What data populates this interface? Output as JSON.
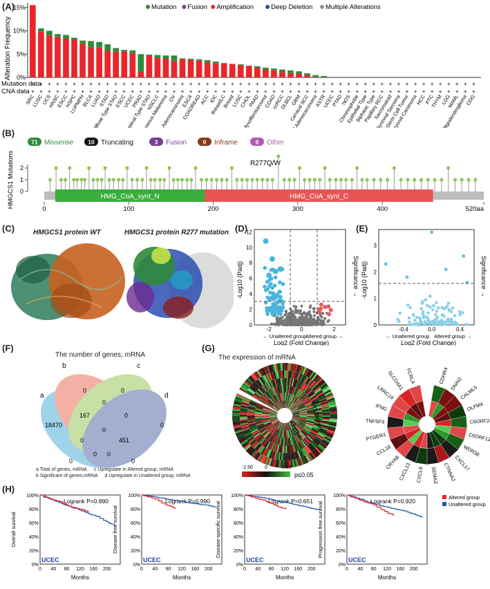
{
  "panels": {
    "a": "(A)",
    "b": "(B)",
    "c": "(C)",
    "d": "(D)",
    "e": "(E)",
    "f": "(F)",
    "g": "(G)",
    "h": "(H)"
  },
  "chart_data": [
    {
      "id": "alteration-frequency",
      "type": "bar",
      "ylabel": "Alteration Frequency",
      "yticks": [
        "15%",
        "10%",
        "5%",
        "0%"
      ],
      "ylim": [
        0,
        16
      ],
      "legend": [
        {
          "name": "Mutation",
          "color": "#2e8b3a"
        },
        {
          "name": "Fusion",
          "color": "#7a3d91"
        },
        {
          "name": "Amplification",
          "color": "#e8262b"
        },
        {
          "name": "Deep Deletion",
          "color": "#2257a8"
        },
        {
          "name": "Multiple Alterations",
          "color": "#8f8f8f"
        }
      ],
      "row_labels": [
        "Mutation data",
        "CNA data"
      ],
      "categories": [
        "SRC",
        "LUSC",
        "UCS",
        "HNSC",
        "ESCC",
        "HSPC",
        "LUPMPH",
        "BLCA",
        "LUAD",
        "STAD",
        "Diffuse Type STAD",
        "ESCC",
        "UCEC",
        "PRAD",
        "Intestinal Type STAD",
        "NSCLC",
        "Cutaneous Melanoma",
        "OV",
        "Mucinous Adenocarcinoma",
        "ESCA",
        "COADREAD",
        "ACC",
        "IDC",
        "BreastILC",
        "Breast",
        "LUSC",
        "CHOL",
        "PAAD",
        "Myxofibrosarcoma",
        "COAD",
        "ccRCC",
        "DLBCL",
        "GBM",
        "Cervical SCC",
        "Endocervical Adenocarcinoma",
        "ASTR",
        "UCEC",
        "PTAD",
        "NOS",
        "Chromophobe",
        "Epithelial Type",
        "Biphasic Type",
        "Papillary RCC",
        "Sarcomatoid",
        "Synovial Sarcoma",
        "Germ Cell Tumor",
        "Embryonal Carcinoma",
        "HCC",
        "PTC",
        "THYM",
        "LGG",
        "MAML",
        "Oligodendroglioma",
        "ODG"
      ],
      "series": [
        {
          "name": "Amplification",
          "values": [
            15.5,
            9.8,
            9.0,
            8.7,
            8.3,
            8.0,
            7.2,
            6.5,
            6.4,
            5.7,
            5.5,
            5.6,
            5.2,
            1.2,
            4.6,
            4.2,
            4.0,
            3.5,
            3.9,
            3.8,
            3.6,
            3.2,
            3.0,
            3.0,
            2.9,
            2.6,
            2.5,
            2.0,
            1.7,
            1.6,
            1.1,
            0.9,
            0.8,
            0.5,
            0.1,
            0,
            0,
            0,
            0,
            0,
            0,
            0,
            0,
            0,
            0,
            0,
            0,
            0,
            0,
            0,
            0,
            0,
            0,
            0
          ]
        },
        {
          "name": "Mutation",
          "values": [
            0,
            0.7,
            1.0,
            0.6,
            0.8,
            0.5,
            0.7,
            1.3,
            1.2,
            1.4,
            0.8,
            0.3,
            0.6,
            3.8,
            0.3,
            0.6,
            0.7,
            1.2,
            0.2,
            0.2,
            0.3,
            0.5,
            0.4,
            0.1,
            0,
            0.2,
            0,
            0.4,
            0.4,
            0.3,
            0.6,
            0.6,
            0.5,
            0.4,
            0.4,
            0.3,
            0,
            0,
            0,
            0,
            0,
            0,
            0,
            0,
            0,
            0,
            0,
            0,
            0,
            0,
            0,
            0,
            0,
            0
          ]
        }
      ]
    },
    {
      "id": "lollipop",
      "type": "scatter",
      "ylabel": "HMGCS1 Mutations",
      "yticks": [
        "2",
        "1",
        "0"
      ],
      "xlim": [
        0,
        520
      ],
      "xticks": [
        "0",
        "100",
        "200",
        "300",
        "400",
        "520aa"
      ],
      "annotation": "R277Q/W",
      "legend": [
        {
          "count": "71",
          "label": "Missense",
          "color": "#2e8b3a"
        },
        {
          "count": "10",
          "label": "Truncating",
          "color": "#111111"
        },
        {
          "count": "3",
          "label": "Fusion",
          "color": "#7a3d91"
        },
        {
          "count": "0",
          "label": "Inframe",
          "color": "#8b3a1a"
        },
        {
          "count": "0",
          "label": "Other",
          "color": "#b05ab0"
        }
      ],
      "domains": [
        {
          "name": "HMG_CoA_synt_N",
          "start": 13,
          "end": 190,
          "color": "#3aae3a"
        },
        {
          "name": "HMG_CoA_synt_C",
          "start": 190,
          "end": 460,
          "color": "#e85555"
        }
      ],
      "positions": [
        7,
        14,
        20,
        25,
        30,
        35,
        39,
        44,
        48,
        53,
        58,
        63,
        68,
        72,
        77,
        82,
        88,
        93,
        98,
        104,
        110,
        116,
        121,
        126,
        131,
        137,
        142,
        148,
        153,
        158,
        163,
        169,
        174,
        179,
        186,
        192,
        198,
        204,
        210,
        216,
        222,
        228,
        234,
        240,
        246,
        252,
        258,
        264,
        270,
        277,
        284,
        290,
        296,
        302,
        308,
        314,
        320,
        326,
        332,
        338,
        345,
        351,
        357,
        364,
        370,
        376,
        382,
        390,
        398,
        406,
        414,
        422,
        430,
        438,
        446,
        454,
        462,
        470,
        478,
        486,
        494,
        502,
        510
      ],
      "heights": [
        1,
        2,
        1,
        1,
        2,
        1,
        1,
        1,
        1,
        2,
        1,
        1,
        1,
        2,
        1,
        1,
        1,
        1,
        2,
        1,
        1,
        1,
        2,
        1,
        1,
        1,
        1,
        2,
        1,
        1,
        1,
        1,
        1,
        2,
        1,
        1,
        1,
        1,
        1,
        1,
        2,
        1,
        1,
        1,
        1,
        1,
        1,
        1,
        1,
        3,
        1,
        1,
        1,
        2,
        1,
        1,
        1,
        1,
        2,
        1,
        1,
        1,
        1,
        1,
        2,
        1,
        1,
        1,
        1,
        1,
        2,
        1,
        1,
        1,
        1,
        1,
        1,
        1,
        2,
        1,
        1,
        1,
        1
      ]
    },
    {
      "id": "volcano-mrna",
      "type": "scatter",
      "ylabel": "-Log10 (Padj)",
      "xlabel": "Log2 (Fold Change)",
      "yticks": [
        "12",
        "10",
        "8",
        "6",
        "4",
        "2",
        "0"
      ],
      "xticks": [
        "-2",
        "0",
        "2"
      ],
      "left_note": "← Unaltered group",
      "right_note": "Altered group →",
      "side_note": "Significance →"
    },
    {
      "id": "volcano-mirna",
      "type": "scatter",
      "ylabel": "-Log10 (Padj)",
      "xlabel": "Log2 (Fold Change)",
      "yticks": [
        "3",
        "2",
        "1",
        "0"
      ],
      "xticks": [
        "-0.4",
        "0.0",
        "0.4"
      ],
      "left_note": "← Unaltered group",
      "right_note": "Altered group →",
      "side_note": "Significance →"
    },
    {
      "id": "km-curves",
      "type": "line",
      "cancer": "UCEC",
      "xlabel": "Months",
      "xticks": [
        "0",
        "40",
        "80",
        "120",
        "160",
        "200"
      ],
      "yticks": [
        "100%",
        "80%",
        "60%",
        "40%",
        "20%",
        "0%"
      ],
      "legend": [
        {
          "name": "Altered group",
          "color": "#e8262b"
        },
        {
          "name": "Unaltered group",
          "color": "#2257a8"
        }
      ],
      "plots": [
        {
          "ylabel": "Overall survival",
          "logrank": "Logrank P=0.890"
        },
        {
          "ylabel": "Disease free survival",
          "logrank": "Logrank P=0.990"
        },
        {
          "ylabel": "Disease-specific survival",
          "logrank": "Logrank P=0.651"
        },
        {
          "ylabel": "Progression free survival",
          "logrank": "Logrank P=0.920"
        }
      ]
    }
  ],
  "protein": {
    "wt": "HMGCS1 protein WT",
    "mut": "HMGCS1 protein R277 mutation"
  },
  "venn": {
    "title": "The number of genes, mRNA",
    "sets": [
      "a",
      "b",
      "c",
      "d"
    ],
    "numbers": [
      "0",
      "0",
      "0",
      "18470",
      "167",
      "0",
      "0",
      "0",
      "451",
      "0",
      "0",
      "0",
      "0",
      "0"
    ],
    "legend": [
      "a Total of  genes, mRNA",
      "b Significant of genes,mRNA",
      "c Upregulate in Altered group,  mRNA",
      "d Upregulate in Unaltered group,  mRNA"
    ]
  },
  "heatmap": {
    "title": "The expression of mRNA",
    "altered": "Altered",
    "unaltered": "Unaltered",
    "scale": [
      "-2.50",
      "0",
      "2.50"
    ],
    "pnote": "p≤0.05",
    "genes": [
      "CDHR4",
      "DNAI2",
      "CALML5",
      "OLFM4",
      "C6ORF24",
      "C6ORF135",
      "WDR38",
      "CXCL17",
      "CTNNA2",
      "SEMA3E",
      "CXCL9",
      "CXCL13",
      "CRYAB",
      "CCL18",
      "PTGER3",
      "TNFSF9",
      "IFNG",
      "LRRC19",
      "SLCO4A1",
      "FCRLA"
    ]
  }
}
